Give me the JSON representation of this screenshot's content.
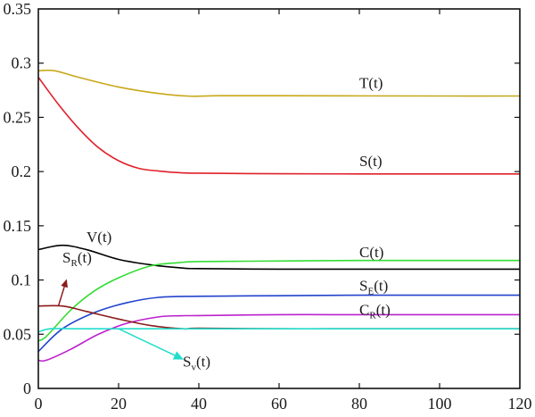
{
  "chart_data": {
    "type": "line",
    "title": "",
    "xlabel": "",
    "ylabel": "",
    "xlim": [
      0,
      120
    ],
    "ylim": [
      0,
      0.35
    ],
    "grid": false,
    "legend": "inline labels",
    "x_ticks": [
      "0",
      "20",
      "40",
      "60",
      "80",
      "100",
      "120"
    ],
    "y_ticks": [
      "0",
      "0.05",
      "0.1",
      "0.15",
      "0.2",
      "0.25",
      "0.3",
      "0.35"
    ],
    "series": [
      {
        "name": "T(t)",
        "label_main": "T",
        "label_sub": "",
        "label_tail": "(t)",
        "color": "#c8a819",
        "x": [
          0,
          4,
          10,
          20,
          30,
          38,
          45,
          60,
          80,
          100,
          120
        ],
        "y": [
          0.293,
          0.293,
          0.287,
          0.278,
          0.272,
          0.2695,
          0.27,
          0.27,
          0.2698,
          0.2697,
          0.2697
        ]
      },
      {
        "name": "S(t)",
        "label_main": "S",
        "label_sub": "",
        "label_tail": "(t)",
        "color": "#e0202a",
        "x": [
          0,
          5,
          10,
          15,
          20,
          25,
          30,
          35,
          40,
          60,
          80,
          100,
          120
        ],
        "y": [
          0.287,
          0.262,
          0.24,
          0.222,
          0.21,
          0.203,
          0.2005,
          0.199,
          0.1985,
          0.198,
          0.1978,
          0.1978,
          0.1978
        ]
      },
      {
        "name": "V(t)",
        "label_main": "V",
        "label_sub": "",
        "label_tail": "(t)",
        "color": "#000000",
        "x": [
          0,
          6,
          12,
          20,
          28,
          36,
          40,
          60,
          80,
          100,
          120
        ],
        "y": [
          0.128,
          0.132,
          0.128,
          0.119,
          0.114,
          0.111,
          0.1105,
          0.11,
          0.11,
          0.11,
          0.11
        ]
      },
      {
        "name": "C(t)",
        "label_main": "C",
        "label_sub": "",
        "label_tail": "(t)",
        "color": "#33dd33",
        "x": [
          0,
          2,
          8,
          14,
          20,
          28,
          35,
          40,
          60,
          80,
          100,
          120
        ],
        "y": [
          0.044,
          0.048,
          0.072,
          0.09,
          0.102,
          0.113,
          0.116,
          0.117,
          0.1175,
          0.118,
          0.118,
          0.118
        ]
      },
      {
        "name": "S_E(t)",
        "label_main": "S",
        "label_sub": "E",
        "label_tail": "(t)",
        "color": "#2244cc",
        "x": [
          0,
          6,
          14,
          22,
          30,
          40,
          60,
          80,
          100,
          120
        ],
        "y": [
          0.034,
          0.055,
          0.07,
          0.079,
          0.084,
          0.085,
          0.0855,
          0.086,
          0.086,
          0.086
        ]
      },
      {
        "name": "C_R(t)",
        "label_main": "C",
        "label_sub": "R",
        "label_tail": "(t)",
        "color": "#bb22cc",
        "x": [
          0,
          2,
          8,
          15,
          22,
          30,
          35,
          40,
          60,
          80,
          100,
          120
        ],
        "y": [
          0.026,
          0.026,
          0.036,
          0.05,
          0.06,
          0.066,
          0.067,
          0.0672,
          0.068,
          0.068,
          0.068,
          0.068
        ]
      },
      {
        "name": "S_R(t)",
        "label_main": "S",
        "label_sub": "R",
        "label_tail": "(t)",
        "color": "#8b1a1a",
        "x": [
          0,
          6,
          12,
          20,
          28,
          36,
          40,
          60,
          80,
          100,
          120
        ],
        "y": [
          0.076,
          0.076,
          0.071,
          0.064,
          0.058,
          0.055,
          0.0555,
          0.055,
          0.055,
          0.055,
          0.055
        ]
      },
      {
        "name": "S_v(t)",
        "label_main": "S",
        "label_sub": "v",
        "label_tail": "(t)",
        "color": "#22ddcc",
        "x": [
          0,
          3,
          10,
          20,
          40,
          60,
          80,
          100,
          120
        ],
        "y": [
          0.052,
          0.055,
          0.055,
          0.055,
          0.055,
          0.055,
          0.055,
          0.055,
          0.055
        ]
      }
    ],
    "annotations": [
      {
        "series": "T(t)",
        "text_x": 80,
        "text_y": 0.277
      },
      {
        "series": "S(t)",
        "text_x": 80,
        "text_y": 0.205
      },
      {
        "series": "V(t)",
        "text_x": 12,
        "text_y": 0.135
      },
      {
        "series": "C(t)",
        "text_x": 80,
        "text_y": 0.121
      },
      {
        "series": "S_E(t)",
        "text_x": 80,
        "text_y": 0.09
      },
      {
        "series": "C_R(t)",
        "text_x": 80,
        "text_y": 0.068
      },
      {
        "series": "S_R(t)",
        "text_x": 6,
        "text_y": 0.116,
        "arrow_from": [
          5,
          0.076
        ],
        "arrow_to": [
          7,
          0.1
        ]
      },
      {
        "series": "S_v(t)",
        "text_x": 36,
        "text_y": 0.02,
        "arrow_from": [
          20,
          0.055
        ],
        "arrow_to": [
          36,
          0.027
        ]
      }
    ]
  }
}
